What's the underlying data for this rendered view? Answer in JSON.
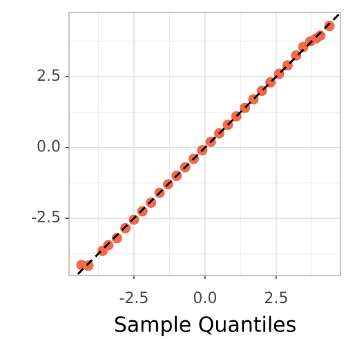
{
  "chart_data": {
    "type": "scatter",
    "x_label": "Sample Quantiles",
    "xlim": [
      -4.78,
      4.76
    ],
    "ylim": [
      -4.52,
      4.77
    ],
    "xticks": [
      {
        "value": -2.5,
        "label": "-2.5"
      },
      {
        "value": 0,
        "label": "0.0"
      },
      {
        "value": 2.5,
        "label": "2.5"
      }
    ],
    "yticks": [
      {
        "value": -2.5,
        "label": "-2.5"
      },
      {
        "value": 0,
        "label": "0.0"
      },
      {
        "value": 2.5,
        "label": "2.5"
      }
    ],
    "minor_xticks": [
      -3.75,
      -1.25,
      1.25,
      3.75
    ],
    "minor_yticks": [
      -3.75,
      -1.25,
      1.25,
      3.75
    ],
    "grid": true,
    "color": "#f4694a",
    "reference_line": {
      "slope": 1,
      "intercept": 0,
      "color": "#000000"
    },
    "x": [
      -4.34,
      -4.1,
      -3.6,
      -3.4,
      -3.1,
      -2.8,
      -2.5,
      -2.2,
      -1.9,
      -1.6,
      -1.3,
      -1.0,
      -0.7,
      -0.4,
      -0.1,
      0.2,
      0.5,
      0.8,
      1.1,
      1.4,
      1.7,
      2.0,
      2.3,
      2.6,
      2.9,
      3.2,
      3.45,
      3.7,
      3.9,
      4.05,
      4.37
    ],
    "y": [
      -4.15,
      -4.17,
      -3.65,
      -3.45,
      -3.2,
      -2.85,
      -2.55,
      -2.25,
      -1.95,
      -1.6,
      -1.3,
      -1.0,
      -0.7,
      -0.4,
      -0.1,
      0.2,
      0.5,
      0.8,
      1.1,
      1.4,
      1.7,
      2.0,
      2.3,
      2.6,
      2.9,
      3.25,
      3.55,
      3.75,
      3.85,
      3.95,
      4.29
    ]
  }
}
